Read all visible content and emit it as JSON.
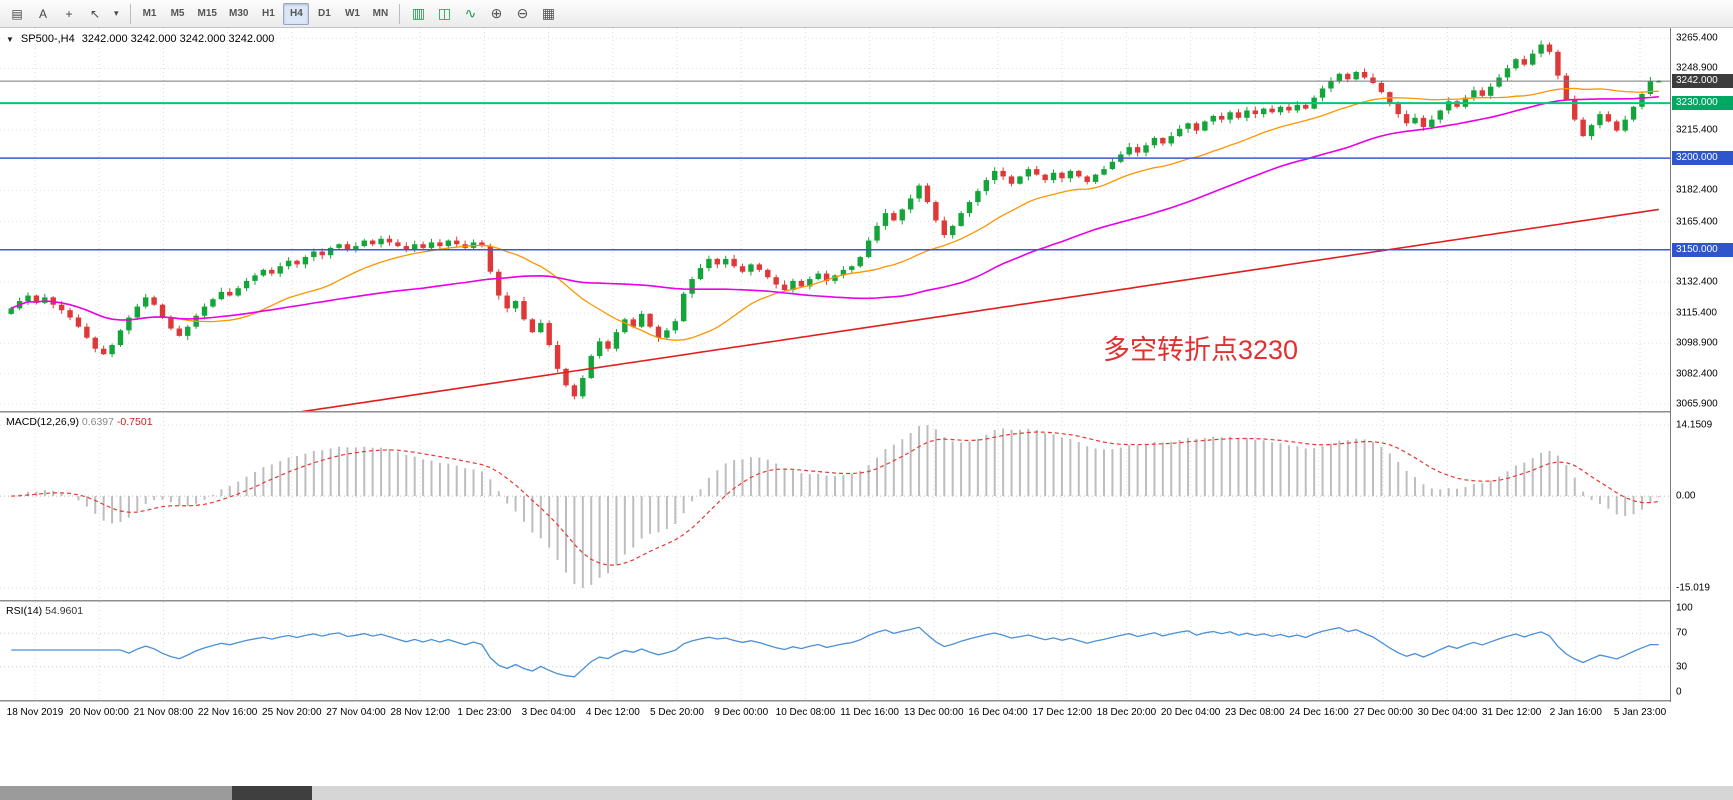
{
  "glyphs": {
    "dropdown": "▼"
  },
  "colors": {
    "up": "#14a43a",
    "down": "#df3838",
    "ma_fast": "#ff9500",
    "ma_mid": "#e800e8",
    "ma_long": "#e02020",
    "macd_hist": "#bdbdbd",
    "macd_signal": "#e53935",
    "rsi_line": "#4a90d9",
    "line_green": "#00c878",
    "line_blue": "#3a57d7",
    "price_line": "#777777",
    "badge_dark": "#3c3c3c",
    "badge_green": "#00a864",
    "badge_blue": "#2f55cc",
    "annotation": "#e23030"
  },
  "toolbar": {
    "left_tools": [
      {
        "name": "chart-windows-icon",
        "glyph": "▤"
      },
      {
        "name": "text-label-tool-button",
        "glyph": "A"
      },
      {
        "name": "crosshair-tool-button",
        "glyph": "+"
      },
      {
        "name": "arrow-objects-button",
        "glyph": "↖"
      },
      {
        "name": "arrow-dropdown-icon",
        "glyph": "▾"
      }
    ],
    "timeframes": [
      "M1",
      "M5",
      "M15",
      "M30",
      "H1",
      "H4",
      "D1",
      "W1",
      "MN"
    ],
    "active_timeframe": "H4",
    "chart_tools": [
      {
        "name": "bar-chart-icon",
        "glyph": "▥",
        "color": "#1a9850"
      },
      {
        "name": "candlestick-chart-icon",
        "glyph": "◫",
        "color": "#1a9850"
      },
      {
        "name": "line-chart-icon",
        "glyph": "∿",
        "color": "#1a9850"
      },
      {
        "name": "zoom-in-icon",
        "glyph": "⊕",
        "color": "#555555"
      },
      {
        "name": "zoom-out-icon",
        "glyph": "⊖",
        "color": "#555555"
      },
      {
        "name": "grid-icon",
        "glyph": "▦",
        "color": "#555555"
      }
    ]
  },
  "chart": {
    "title": "SP500-,H4",
    "ohlc_text": "3242.000 3242.000 3242.000 3242.000",
    "annotation": {
      "text": "多空转折点3230",
      "color": "#e23030"
    },
    "y_ticks": [
      "3265.400",
      "3248.900",
      "3215.400",
      "3182.400",
      "3165.400",
      "3132.400",
      "3115.400",
      "3098.900",
      "3082.400",
      "3065.900"
    ],
    "hlines": [
      {
        "price": 3242,
        "label": "3242.000",
        "line": "price_line",
        "badge": "badge_dark",
        "width": 1
      },
      {
        "price": 3230,
        "label": "3230.000",
        "line": "line_green",
        "badge": "badge_green",
        "width": 2
      },
      {
        "price": 3200,
        "label": "3200.000",
        "line": "line_blue",
        "badge": "badge_blue",
        "width": 1.5
      },
      {
        "price": 3150,
        "label": "3150.000",
        "line": "line_blue",
        "badge": "badge_blue",
        "width": 1.5
      }
    ]
  },
  "macd": {
    "label": "MACD(12,26,9)",
    "value1": "0.6397",
    "value2": "-0.7501",
    "axis": [
      "14.1509",
      "0.00",
      "-15.019"
    ]
  },
  "rsi": {
    "label": "RSI(14)",
    "value": "54.9601",
    "axis": [
      "100",
      "70",
      "30",
      "0"
    ],
    "levels": [
      70,
      30
    ]
  },
  "chart_data": {
    "type": "candlestick",
    "symbol": "SP500-",
    "timeframe": "H4",
    "title": "SP500-,H4",
    "ohlc_current": [
      3242.0,
      3242.0,
      3242.0,
      3242.0
    ],
    "y_range": [
      3062,
      3271
    ],
    "horizontal_lines": [
      3242,
      3230,
      3200,
      3150
    ],
    "annotation_text": "多空转折点3230",
    "time_labels": [
      "18 Nov 2019",
      "20 Nov 00:00",
      "21 Nov 08:00",
      "22 Nov 16:00",
      "25 Nov 20:00",
      "27 Nov 04:00",
      "28 Nov 12:00",
      "1 Dec 23:00",
      "3 Dec 04:00",
      "4 Dec 12:00",
      "5 Dec 20:00",
      "9 Dec 00:00",
      "10 Dec 08:00",
      "11 Dec 16:00",
      "13 Dec 00:00",
      "16 Dec 04:00",
      "17 Dec 12:00",
      "18 Dec 20:00",
      "20 Dec 04:00",
      "23 Dec 08:00",
      "24 Dec 16:00",
      "27 Dec 00:00",
      "30 Dec 04:00",
      "31 Dec 12:00",
      "2 Jan 16:00",
      "5 Jan 23:00"
    ],
    "closes": [
      3118,
      3122,
      3125,
      3121,
      3124,
      3120,
      3117,
      3113,
      3108,
      3102,
      3096,
      3093,
      3098,
      3106,
      3113,
      3119,
      3124,
      3120,
      3113,
      3107,
      3103,
      3108,
      3114,
      3119,
      3123,
      3127,
      3125,
      3129,
      3133,
      3136,
      3139,
      3137,
      3141,
      3144,
      3142,
      3146,
      3149,
      3147,
      3151,
      3153,
      3150,
      3152,
      3155,
      3153,
      3156,
      3154,
      3152,
      3150,
      3153,
      3151,
      3154,
      3152,
      3155,
      3153,
      3151,
      3154,
      3152,
      3138,
      3125,
      3118,
      3122,
      3112,
      3105,
      3110,
      3098,
      3085,
      3076,
      3070,
      3080,
      3092,
      3100,
      3096,
      3105,
      3112,
      3108,
      3115,
      3108,
      3102,
      3106,
      3111,
      3126,
      3134,
      3140,
      3145,
      3142,
      3145,
      3141,
      3138,
      3142,
      3139,
      3135,
      3131,
      3128,
      3133,
      3130,
      3134,
      3137,
      3133,
      3136,
      3139,
      3141,
      3146,
      3155,
      3163,
      3170,
      3166,
      3172,
      3178,
      3185,
      3176,
      3166,
      3158,
      3163,
      3170,
      3176,
      3182,
      3188,
      3193,
      3190,
      3186,
      3190,
      3194,
      3191,
      3188,
      3192,
      3189,
      3193,
      3190,
      3187,
      3191,
      3194,
      3198,
      3202,
      3206,
      3203,
      3207,
      3211,
      3208,
      3212,
      3216,
      3219,
      3215,
      3220,
      3223,
      3221,
      3225,
      3222,
      3226,
      3224,
      3227,
      3225,
      3228,
      3226,
      3229,
      3227,
      3233,
      3238,
      3242,
      3246,
      3243,
      3247,
      3244,
      3241,
      3236,
      3230,
      3224,
      3219,
      3222,
      3217,
      3221,
      3226,
      3231,
      3228,
      3233,
      3237,
      3234,
      3239,
      3244,
      3249,
      3254,
      3251,
      3257,
      3262,
      3258,
      3245,
      3232,
      3221,
      3212,
      3218,
      3224,
      3220,
      3215,
      3221,
      3228,
      3235,
      3242,
      3242
    ],
    "moving_averages": [
      {
        "type": "fast",
        "period": 20,
        "color": "#ff9500"
      },
      {
        "type": "mid",
        "period": 50,
        "color": "#e800e8"
      },
      {
        "type": "long-trend",
        "approx_start": 3038,
        "approx_end": 3172,
        "color": "#e02020"
      }
    ],
    "indicators": [
      {
        "name": "MACD",
        "params": [
          12,
          26,
          9
        ],
        "current": [
          0.6397,
          -0.7501
        ],
        "axis_range": [
          -15.019,
          14.1509
        ]
      },
      {
        "name": "RSI",
        "params": [
          14
        ],
        "current": 54.9601,
        "levels": [
          70,
          30
        ],
        "axis_range": [
          0,
          100
        ]
      }
    ]
  }
}
